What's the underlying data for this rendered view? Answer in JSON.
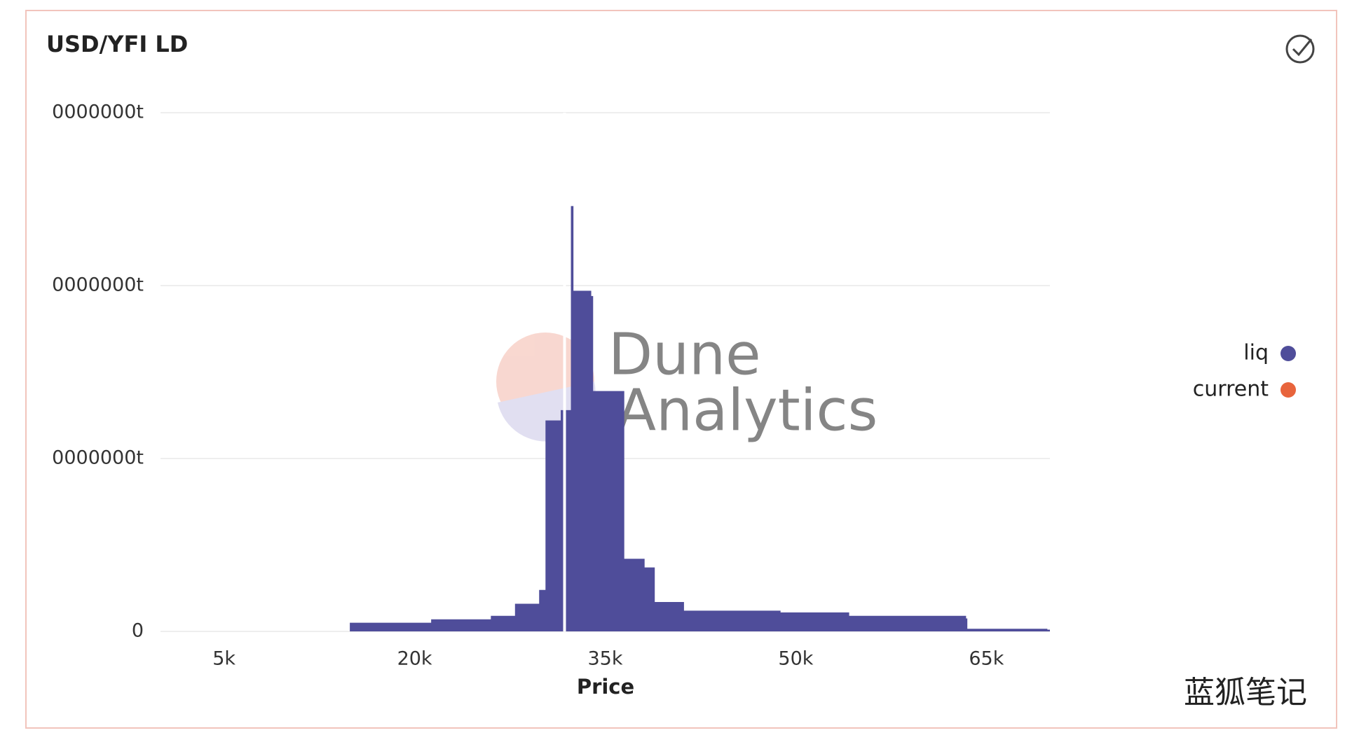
{
  "chart_data": {
    "type": "area",
    "title": "USD/YFI LD",
    "x_label": "Price",
    "xlim": [
      0,
      70000
    ],
    "xticks": [
      {
        "value": 5000,
        "label": "5k"
      },
      {
        "value": 20000,
        "label": "20k"
      },
      {
        "value": 35000,
        "label": "35k"
      },
      {
        "value": 50000,
        "label": "50k"
      },
      {
        "value": 65000,
        "label": "65k"
      }
    ],
    "ylim": [
      0,
      30000000
    ],
    "yticks": [
      0,
      {
        "value": 10000000,
        "label": "0000000t"
      },
      {
        "value": 20000000,
        "label": "0000000t"
      },
      {
        "value": 30000000,
        "label": "0000000t"
      }
    ],
    "grid": true,
    "legend": "right",
    "series": [
      {
        "name": "liq",
        "color": "#4f4d9a",
        "x": [
          14900,
          21300,
          26000,
          27900,
          29800,
          30300,
          31500,
          32300,
          32500,
          33900,
          34050,
          36350,
          36500,
          38100,
          38900,
          41200,
          48800,
          54200,
          63400,
          63500,
          69800
        ],
        "values": [
          500000,
          700000,
          900000,
          1600000,
          2400000,
          12200000,
          12800000,
          24600000,
          19700000,
          19400000,
          13900000,
          13900000,
          4200000,
          3700000,
          1700000,
          1200000,
          1100000,
          900000,
          750000,
          150000,
          100000
        ]
      },
      {
        "name": "current",
        "color": "#e8643c",
        "x": [
          31800
        ]
      }
    ],
    "watermark": [
      "Dune",
      "Analytics"
    ],
    "source_mark": "蓝狐笔记"
  }
}
